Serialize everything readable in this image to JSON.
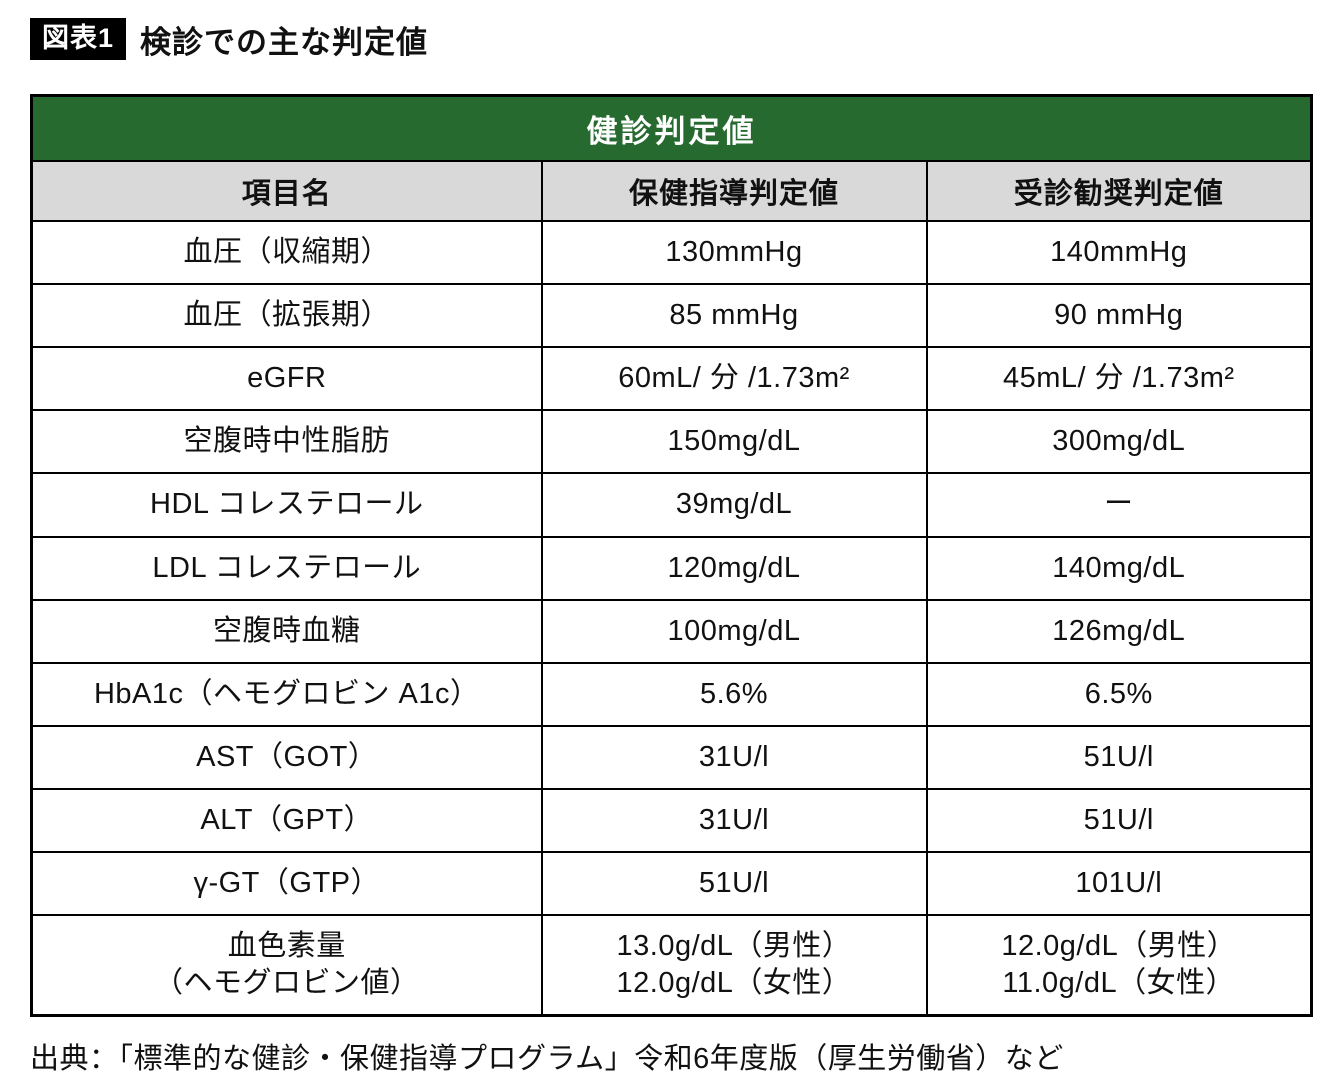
{
  "figure": {
    "tag": "図表1",
    "title": "検診での主な判定値"
  },
  "chart_data": {
    "type": "table",
    "title": "健診判定値",
    "columns": [
      "項目名",
      "保健指導判定値",
      "受診勧奨判定値"
    ],
    "rows": [
      [
        "血圧（収縮期）",
        "130mmHg",
        "140mmHg"
      ],
      [
        "血圧（拡張期）",
        "85 mmHg",
        "90 mmHg"
      ],
      [
        "eGFR",
        "60mL/ 分 /1.73m²",
        "45mL/ 分 /1.73m²"
      ],
      [
        "空腹時中性脂肪",
        "150mg/dL",
        "300mg/dL"
      ],
      [
        "HDL コレステロール",
        "39mg/dL",
        "ー"
      ],
      [
        "LDL コレステロール",
        "120mg/dL",
        "140mg/dL"
      ],
      [
        "空腹時血糖",
        "100mg/dL",
        "126mg/dL"
      ],
      [
        "HbA1c（ヘモグロビン A1c）",
        "5.6%",
        "6.5%"
      ],
      [
        "AST（GOT）",
        "31U/l",
        "51U/l"
      ],
      [
        "ALT（GPT）",
        "31U/l",
        "51U/l"
      ],
      [
        "γ-GT（GTP）",
        "51U/l",
        "101U/l"
      ],
      [
        "血色素量\n（ヘモグロビン値）",
        "13.0g/dL（男性）\n12.0g/dL（女性）",
        "12.0g/dL（男性）\n11.0g/dL（女性）"
      ]
    ]
  },
  "source": "出典：「標準的な健診・保健指導プログラム」令和6年度版（厚生労働省）など",
  "colors": {
    "header_green": "#266a2f",
    "subheader_gray": "#d9d9d9",
    "tag_black": "#000000",
    "border": "#000000"
  }
}
